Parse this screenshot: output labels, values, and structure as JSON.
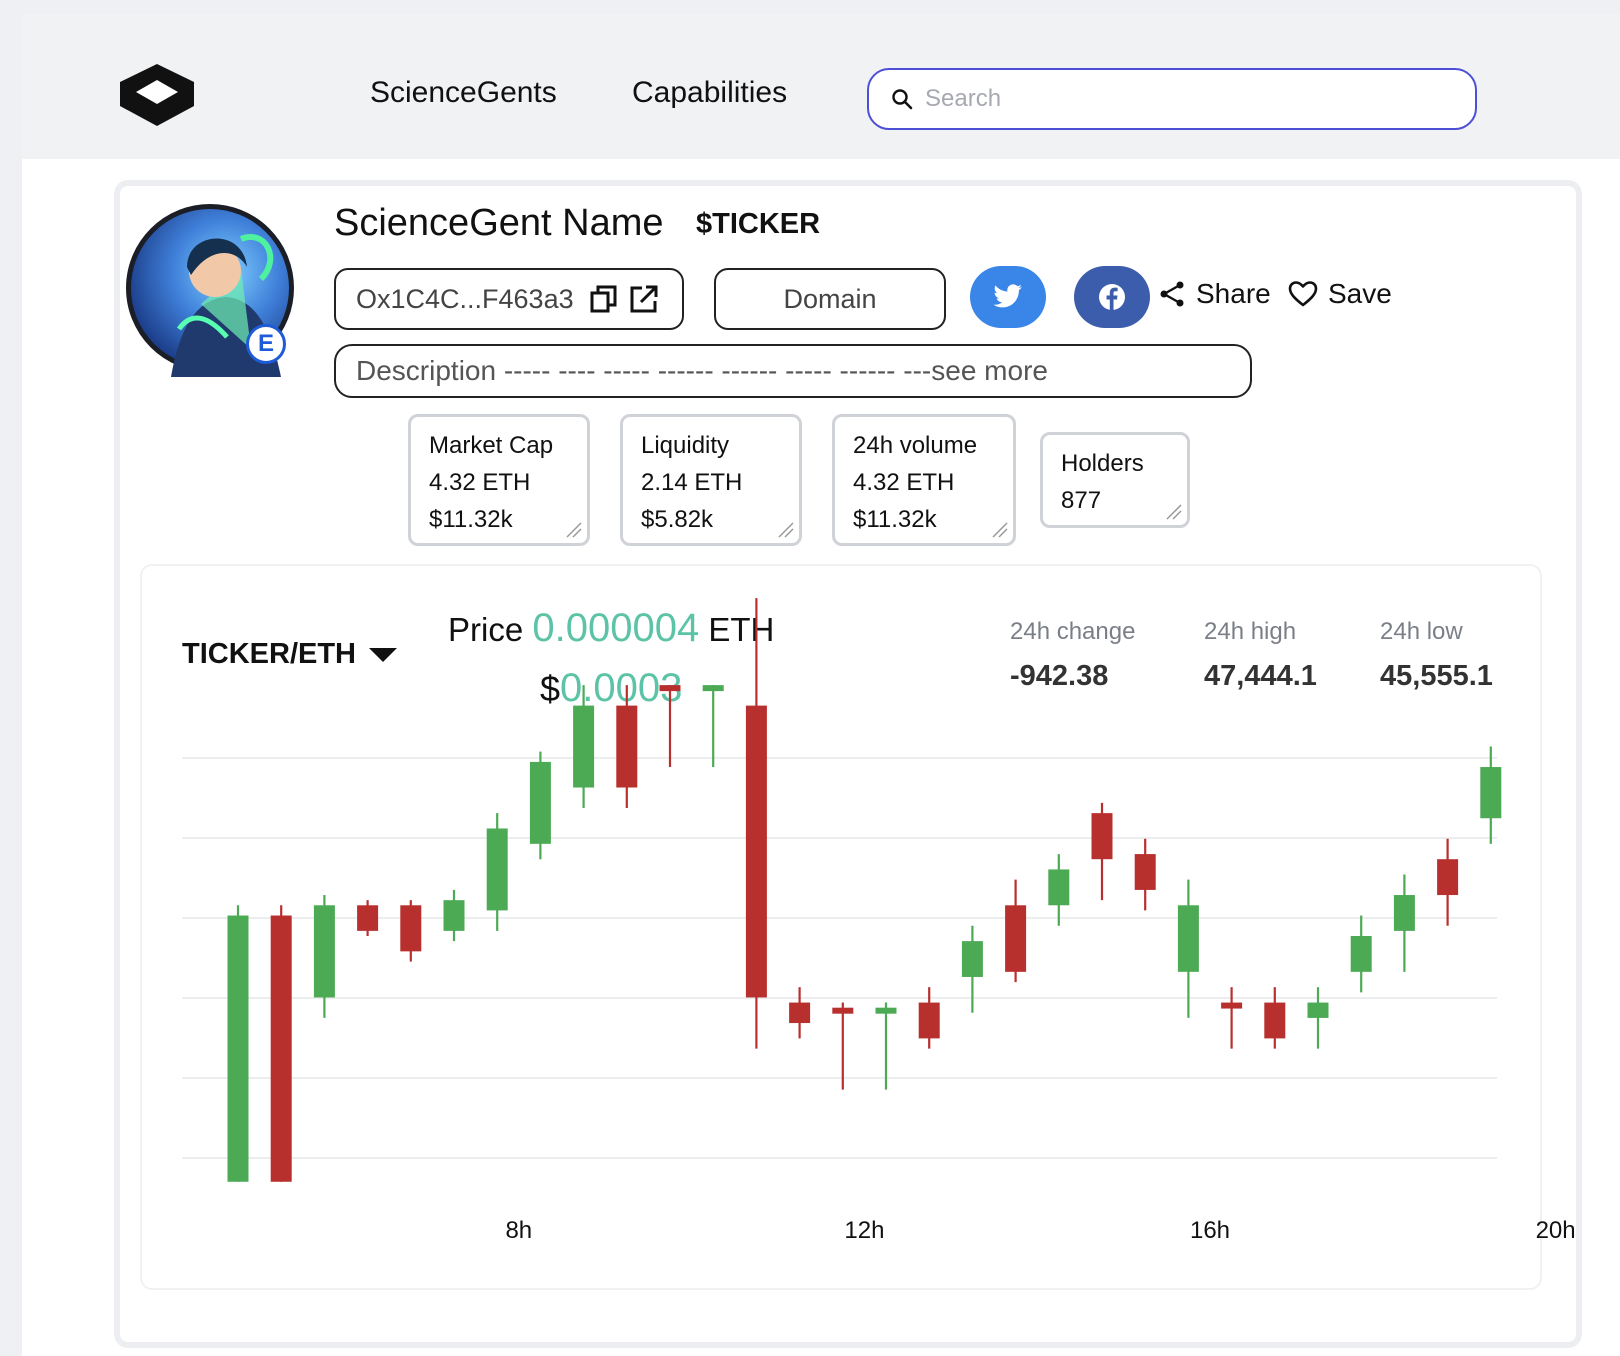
{
  "nav": {
    "items": [
      "ScienceGents",
      "Capabilities"
    ],
    "search_placeholder": "Search"
  },
  "profile": {
    "name": "ScienceGent Name",
    "ticker": "$TICKER",
    "address": "Ox1C4C...F463a3",
    "domain_label": "Domain",
    "share_label": "Share",
    "save_label": "Save",
    "description": "Description ----- ---- ----- ------ ------  ----- ------ ---see more"
  },
  "stats": {
    "market_cap": {
      "label": "Market Cap",
      "eth": "4.32 ETH",
      "usd": "$11.32k"
    },
    "liquidity": {
      "label": "Liquidity",
      "eth": "2.14 ETH",
      "usd": "$5.82k"
    },
    "volume": {
      "label": "24h volume",
      "eth": "4.32 ETH",
      "usd": "$11.32k"
    },
    "holders": {
      "label": "Holders",
      "value": "877"
    }
  },
  "market": {
    "pair": "TICKER/ETH",
    "price_prefix": "Price ",
    "price_value": "0.000004",
    "price_unit": " ETH",
    "usd_prefix": "$",
    "usd_value": "0.0003",
    "change_label": "24h change",
    "change_value": "-942.38",
    "high_label": "24h high",
    "high_value": "47,444.1",
    "low_label": "24h low",
    "low_value": "45,555.1"
  },
  "colors": {
    "up": "#4caa55",
    "down": "#b8302e",
    "accent": "#5cc3a6",
    "search_border": "#4d4fd6"
  },
  "chart_data": {
    "type": "candlestick",
    "x_ticks": [
      "8h",
      "12h",
      "16h",
      "20h"
    ],
    "x_tick_positions": [
      6.5,
      14.5,
      22.5,
      30.5
    ],
    "y_range": [
      0,
      100
    ],
    "grid": "horizontal",
    "candles": [
      {
        "o": 2,
        "c": 54,
        "h": 56,
        "l": 2
      },
      {
        "o": 54,
        "c": 2,
        "h": 56,
        "l": 2
      },
      {
        "o": 38,
        "c": 56,
        "h": 58,
        "l": 34
      },
      {
        "o": 56,
        "c": 51,
        "h": 57,
        "l": 50
      },
      {
        "o": 56,
        "c": 47,
        "h": 57,
        "l": 45
      },
      {
        "o": 51,
        "c": 57,
        "h": 59,
        "l": 49
      },
      {
        "o": 55,
        "c": 71,
        "h": 74,
        "l": 51
      },
      {
        "o": 68,
        "c": 84,
        "h": 86,
        "l": 65
      },
      {
        "o": 79,
        "c": 95,
        "h": 99,
        "l": 75
      },
      {
        "o": 95,
        "c": 79,
        "h": 99,
        "l": 75
      },
      {
        "o": 99,
        "c": 98,
        "h": 99,
        "l": 83
      },
      {
        "o": 98,
        "c": 99,
        "h": 99,
        "l": 83
      },
      {
        "o": 95,
        "c": 38,
        "h": 116,
        "l": 28
      },
      {
        "o": 37,
        "c": 33,
        "h": 40,
        "l": 30
      },
      {
        "o": 36,
        "c": 35,
        "h": 37,
        "l": 20
      },
      {
        "o": 35,
        "c": 36,
        "h": 37,
        "l": 20
      },
      {
        "o": 37,
        "c": 30,
        "h": 40,
        "l": 28
      },
      {
        "o": 42,
        "c": 49,
        "h": 52,
        "l": 35
      },
      {
        "o": 56,
        "c": 43,
        "h": 61,
        "l": 41
      },
      {
        "o": 56,
        "c": 63,
        "h": 66,
        "l": 52
      },
      {
        "o": 74,
        "c": 65,
        "h": 76,
        "l": 57
      },
      {
        "o": 66,
        "c": 59,
        "h": 69,
        "l": 55
      },
      {
        "o": 43,
        "c": 56,
        "h": 61,
        "l": 34
      },
      {
        "o": 37,
        "c": 36,
        "h": 40,
        "l": 28
      },
      {
        "o": 37,
        "c": 30,
        "h": 40,
        "l": 28
      },
      {
        "o": 34,
        "c": 37,
        "h": 40,
        "l": 28
      },
      {
        "o": 43,
        "c": 50,
        "h": 54,
        "l": 39
      },
      {
        "o": 51,
        "c": 58,
        "h": 62,
        "l": 43
      },
      {
        "o": 65,
        "c": 58,
        "h": 69,
        "l": 52
      },
      {
        "o": 73,
        "c": 83,
        "h": 87,
        "l": 68
      }
    ]
  }
}
